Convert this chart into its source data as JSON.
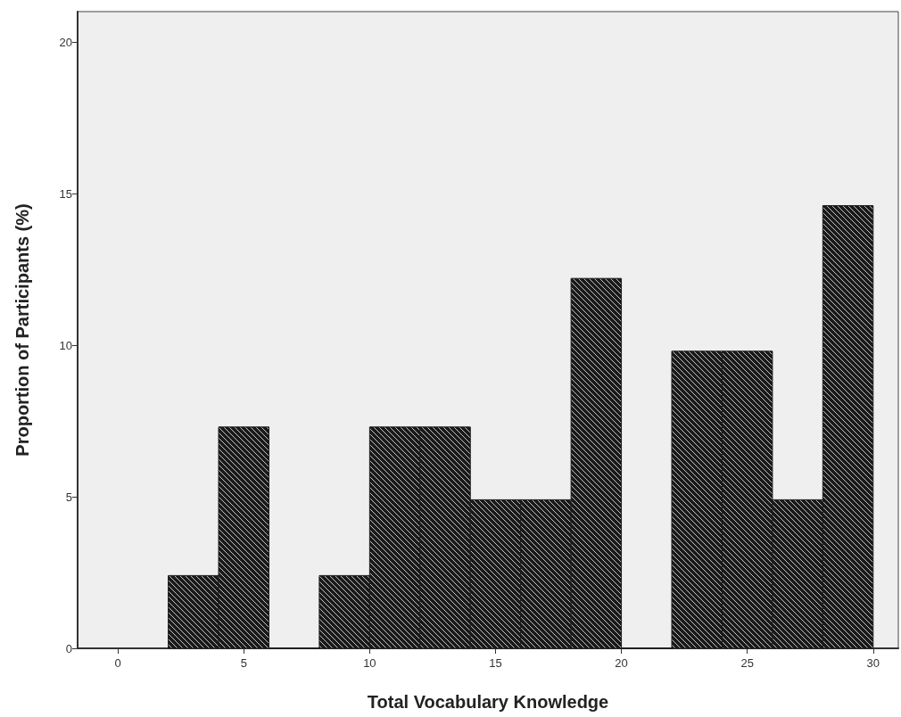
{
  "chart_data": {
    "type": "histogram",
    "xlabel": "Total Vocabulary Knowledge",
    "ylabel": "Proportion of Participants (%)",
    "bins": [
      2,
      4,
      6,
      8,
      10,
      12,
      14,
      16,
      18,
      20,
      22,
      24,
      26,
      28,
      30
    ],
    "values": [
      2.4,
      7.3,
      0,
      2.4,
      7.3,
      7.3,
      4.9,
      4.9,
      12.2,
      0,
      9.8,
      9.8,
      4.9,
      14.6
    ],
    "color": "#1a1a1a",
    "xlim": [
      -1.6,
      31
    ],
    "xticks": [
      0,
      5,
      10,
      15,
      20,
      25,
      30
    ],
    "ylim": [
      0,
      21
    ],
    "yticks": [
      0,
      5,
      10,
      15,
      20
    ],
    "grid": false
  }
}
